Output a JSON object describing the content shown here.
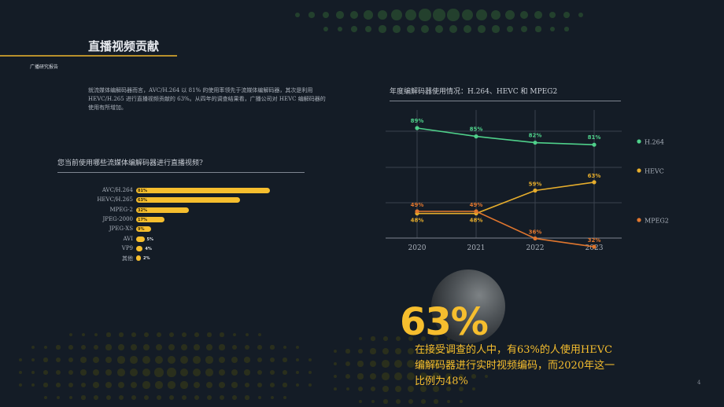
{
  "header": {
    "title": "直播视频贡献",
    "subtitle": "广播研究报告"
  },
  "intro_text": "就流媒体编解码器而言，AVC/H.264 以 81% 的使用率领先于流媒体编解码器，其次是利用 HEVC/H.265 进行直播视频贡献的 63%。从四年的调查结果看，广播公司对 HEVC 编解码器的使用有所增加。",
  "bar_section": {
    "question": "您当前使用哪些流媒体编解码器进行直播视频?"
  },
  "line_section": {
    "title": "年度编解码器使用情况：H.264、HEVC 和 MPEG2"
  },
  "highlight": {
    "big_number": "63%",
    "text": "在接受调查的人中，有63%的人使用HEVC编解码器进行实时视频编码，而2020年这一比例为48%"
  },
  "page_number": "4",
  "colors": {
    "background": "#141c26",
    "accent": "#f6be2e",
    "h264": "#4fd08a",
    "hevc": "#e6ad2c",
    "mpeg2": "#e0762e"
  },
  "chart_data": [
    {
      "type": "bar",
      "orientation": "horizontal",
      "title": "您当前使用哪些流媒体编解码器进行直播视频?",
      "categories": [
        "AVC/H.264",
        "HEVC/H.265",
        "MPEG-2",
        "JPEG-2000",
        "JPEG-XS",
        "AVI",
        "VP9",
        "其他"
      ],
      "values": [
        81,
        63,
        32,
        17,
        9,
        5,
        4,
        2
      ],
      "value_labels": [
        "81%",
        "63%",
        "32%",
        "17%",
        "9%",
        "5%",
        "4%",
        "2%"
      ],
      "unit": "%",
      "xlim": [
        0,
        100
      ]
    },
    {
      "type": "line",
      "title": "年度编解码器使用情况：H.264、HEVC 和 MPEG2",
      "categories": [
        "2020",
        "2021",
        "2022",
        "2023"
      ],
      "series": [
        {
          "name": "H.264",
          "values": [
            89,
            85,
            82,
            81
          ],
          "labels": [
            "89%",
            "85%",
            "82%",
            "81%"
          ]
        },
        {
          "name": "HEVC",
          "values": [
            48,
            48,
            59,
            63
          ],
          "labels": [
            "48%",
            "48%",
            "59%",
            "63%"
          ]
        },
        {
          "name": "MPEG2",
          "values": [
            49,
            49,
            36,
            32
          ],
          "labels": [
            "49%",
            "49%",
            "36%",
            "32%"
          ]
        }
      ],
      "legend": "right",
      "grid": true
    }
  ]
}
